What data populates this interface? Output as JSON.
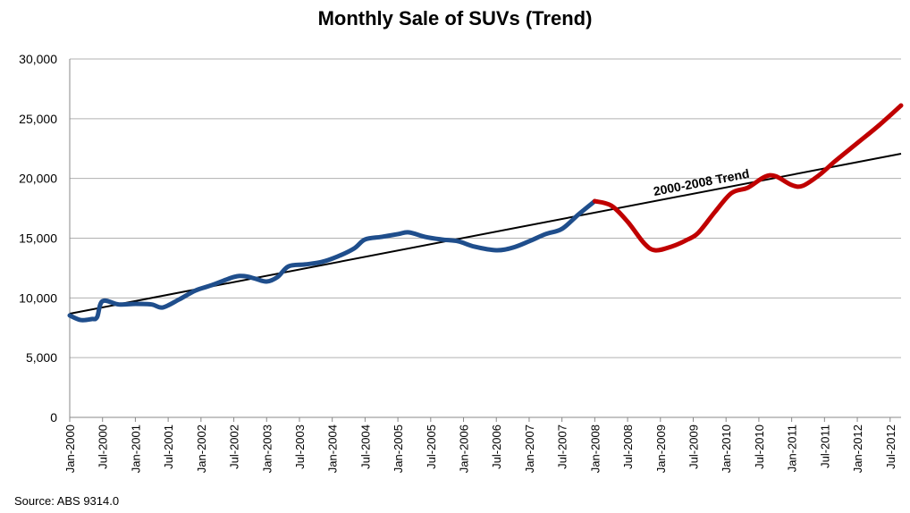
{
  "chart_data": {
    "type": "line",
    "title": "Monthly Sale of SUVs (Trend)",
    "xlabel": "",
    "ylabel": "",
    "ylim": [
      0,
      30000
    ],
    "yticks": [
      "0",
      "5,000",
      "10,000",
      "15,000",
      "20,000",
      "25,000",
      "30,000"
    ],
    "xlim": [
      "2000-01",
      "2012-09"
    ],
    "xticks": [
      "Jan-2000",
      "Jul-2000",
      "Jan-2001",
      "Jul-2001",
      "Jan-2002",
      "Jul-2002",
      "Jan-2003",
      "Jul-2003",
      "Jan-2004",
      "Jul-2004",
      "Jan-2005",
      "Jul-2005",
      "Jan-2006",
      "Jul-2006",
      "Jan-2007",
      "Jul-2007",
      "Jan-2008",
      "Jul-2008",
      "Jan-2009",
      "Jul-2009",
      "Jan-2010",
      "Jul-2010",
      "Jan-2011",
      "Jul-2011",
      "Jan-2012",
      "Jul-2012"
    ],
    "grid": true,
    "series": [
      {
        "color": "#1f4e8c",
        "points": [
          [
            "2000-01",
            8530
          ],
          [
            "2000-03",
            8150
          ],
          [
            "2000-05",
            8230
          ],
          [
            "2000-06",
            8380
          ],
          [
            "2000-07",
            9730
          ],
          [
            "2000-10",
            9450
          ],
          [
            "2001-01",
            9500
          ],
          [
            "2001-04",
            9450
          ],
          [
            "2001-06",
            9200
          ],
          [
            "2001-09",
            9870
          ],
          [
            "2001-12",
            10620
          ],
          [
            "2002-03",
            11070
          ],
          [
            "2002-07",
            11750
          ],
          [
            "2002-09",
            11820
          ],
          [
            "2002-11",
            11600
          ],
          [
            "2003-01",
            11370
          ],
          [
            "2003-03",
            11750
          ],
          [
            "2003-05",
            12640
          ],
          [
            "2003-08",
            12800
          ],
          [
            "2003-11",
            13000
          ],
          [
            "2004-02",
            13470
          ],
          [
            "2004-05",
            14140
          ],
          [
            "2004-07",
            14890
          ],
          [
            "2004-10",
            15110
          ],
          [
            "2005-01",
            15340
          ],
          [
            "2005-03",
            15490
          ],
          [
            "2005-06",
            15110
          ],
          [
            "2005-09",
            14890
          ],
          [
            "2005-12",
            14740
          ],
          [
            "2006-03",
            14290
          ],
          [
            "2006-07",
            13990
          ],
          [
            "2006-10",
            14210
          ],
          [
            "2007-01",
            14740
          ],
          [
            "2007-04",
            15340
          ],
          [
            "2007-07",
            15780
          ],
          [
            "2007-10",
            16980
          ],
          [
            "2008-01",
            18100
          ]
        ]
      },
      {
        "color": "#c00000",
        "points": [
          [
            "2008-01",
            18100
          ],
          [
            "2008-04",
            17730
          ],
          [
            "2008-07",
            16380
          ],
          [
            "2008-10",
            14590
          ],
          [
            "2008-12",
            13990
          ],
          [
            "2009-03",
            14290
          ],
          [
            "2009-06",
            14890
          ],
          [
            "2009-08",
            15490
          ],
          [
            "2009-11",
            17210
          ],
          [
            "2010-02",
            18780
          ],
          [
            "2010-05",
            19230
          ],
          [
            "2010-08",
            20120
          ],
          [
            "2010-10",
            20200
          ],
          [
            "2011-01",
            19450
          ],
          [
            "2011-03",
            19380
          ],
          [
            "2011-06",
            20270
          ],
          [
            "2011-09",
            21470
          ],
          [
            "2012-01",
            22960
          ],
          [
            "2012-05",
            24460
          ],
          [
            "2012-09",
            26110
          ]
        ]
      }
    ],
    "trendline": {
      "label": "2000-2008 Trend",
      "color": "#000000",
      "start": [
        "2000-01",
        8680
      ],
      "end": [
        "2012-09",
        22070
      ]
    }
  },
  "source": "Source: ABS  9314.0"
}
